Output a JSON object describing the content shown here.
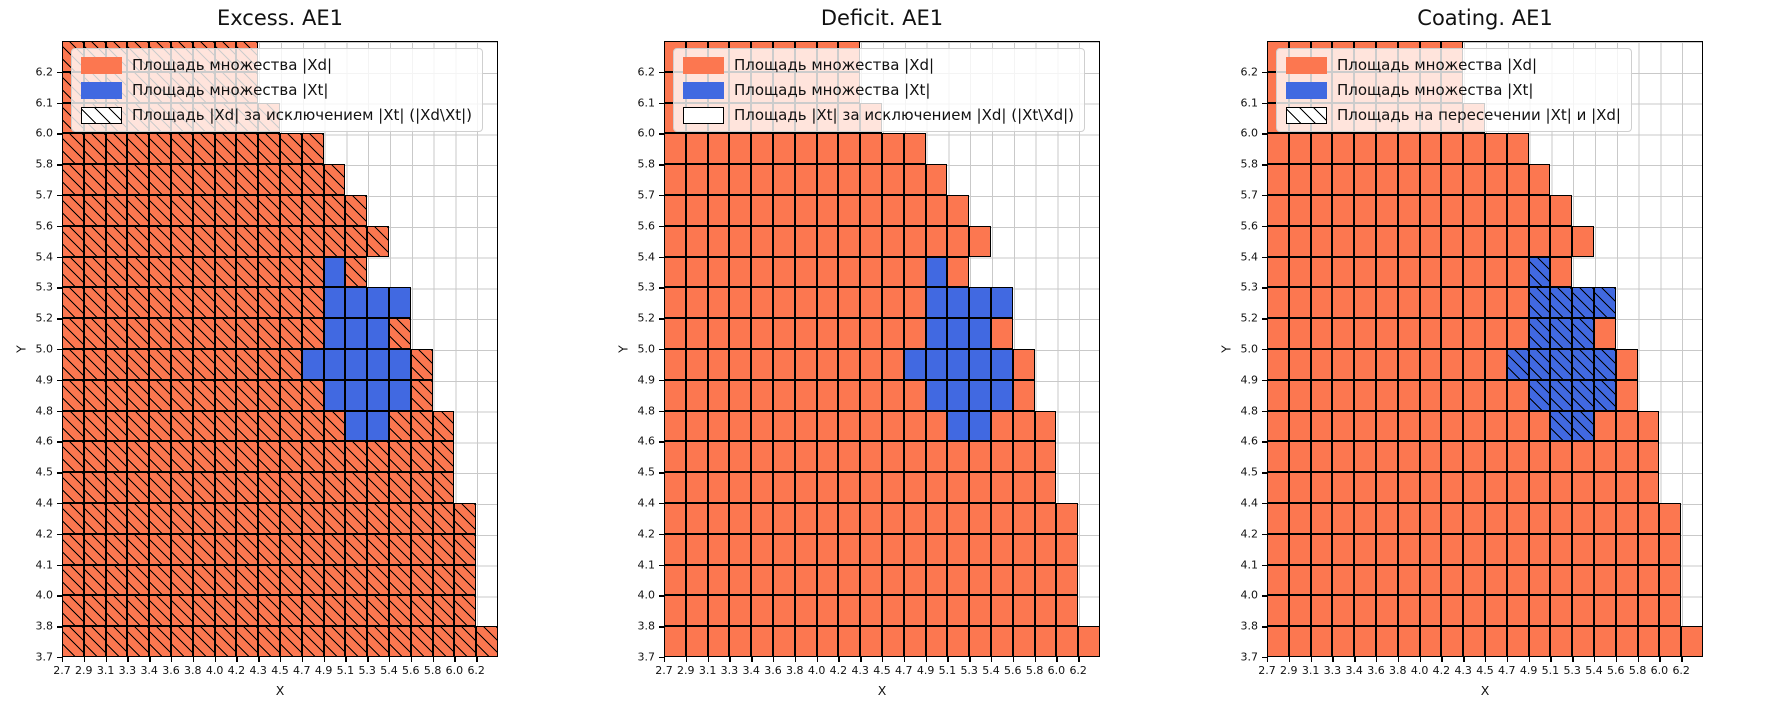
{
  "chart_data": [
    {
      "type": "heatmap",
      "title": "Excess. AE1",
      "xlabel": "X",
      "ylabel": "Y",
      "x_ticks": [
        "2.7",
        "2.9",
        "3.1",
        "3.3",
        "3.4",
        "3.6",
        "3.8",
        "4.0",
        "4.2",
        "4.3",
        "4.5",
        "4.7",
        "4.9",
        "5.1",
        "5.3",
        "5.4",
        "5.6",
        "5.8",
        "6.0",
        "6.2"
      ],
      "y_ticks": [
        "3.7",
        "3.8",
        "4.0",
        "4.1",
        "4.2",
        "4.4",
        "4.5",
        "4.6",
        "4.8",
        "4.9",
        "5.0",
        "5.2",
        "5.3",
        "5.4",
        "5.6",
        "5.7",
        "5.8",
        "6.0",
        "6.1",
        "6.2"
      ],
      "grid": "on",
      "legend_position": "upper-left",
      "hatch_on": "xd",
      "legend": [
        {
          "label": "Площадь множества |Xd|",
          "swatch": "xd"
        },
        {
          "label": "Площадь множества  |Xt|",
          "swatch": "xt"
        },
        {
          "label": "Площадь |Xd| за исключением |Xt| (|Xd\\Xt|)",
          "swatch": "hatch"
        }
      ]
    },
    {
      "type": "heatmap",
      "title": "Deficit. AE1",
      "xlabel": "X",
      "ylabel": "Y",
      "x_ticks": [
        "2.7",
        "2.9",
        "3.1",
        "3.3",
        "3.4",
        "3.6",
        "3.8",
        "4.0",
        "4.2",
        "4.3",
        "4.5",
        "4.7",
        "4.9",
        "5.1",
        "5.3",
        "5.4",
        "5.6",
        "5.8",
        "6.0",
        "6.2"
      ],
      "y_ticks": [
        "3.7",
        "3.8",
        "4.0",
        "4.1",
        "4.2",
        "4.4",
        "4.5",
        "4.6",
        "4.8",
        "4.9",
        "5.0",
        "5.2",
        "5.3",
        "5.4",
        "5.6",
        "5.7",
        "5.8",
        "6.0",
        "6.1",
        "6.2"
      ],
      "grid": "on",
      "legend_position": "upper-left",
      "hatch_on": "none",
      "legend": [
        {
          "label": "Площадь множества |Xd|",
          "swatch": "xd"
        },
        {
          "label": "Площадь множества  |Xt|",
          "swatch": "xt"
        },
        {
          "label": "Площадь |Xt| за исключением |Xd| (|Xt\\Xd|)",
          "swatch": "empty"
        }
      ]
    },
    {
      "type": "heatmap",
      "title": "Coating. AE1",
      "xlabel": "X",
      "ylabel": "Y",
      "x_ticks": [
        "2.7",
        "2.9",
        "3.1",
        "3.3",
        "3.4",
        "3.6",
        "3.8",
        "4.0",
        "4.2",
        "4.3",
        "4.5",
        "4.7",
        "4.9",
        "5.1",
        "5.3",
        "5.4",
        "5.6",
        "5.8",
        "6.0",
        "6.2"
      ],
      "y_ticks": [
        "3.7",
        "3.8",
        "4.0",
        "4.1",
        "4.2",
        "4.4",
        "4.5",
        "4.6",
        "4.8",
        "4.9",
        "5.0",
        "5.2",
        "5.3",
        "5.4",
        "5.6",
        "5.7",
        "5.8",
        "6.0",
        "6.1",
        "6.2"
      ],
      "grid": "on",
      "legend_position": "upper-left",
      "hatch_on": "xt",
      "legend": [
        {
          "label": "Площадь множества |Xd|",
          "swatch": "xd"
        },
        {
          "label": "Площадь множества  |Xt|",
          "swatch": "xt"
        },
        {
          "label": "Площадь на пересечении |Xt| и |Xd|",
          "swatch": "hatch"
        }
      ]
    }
  ],
  "set_data": {
    "note": "20x20 cell grid shared by all three charts; rows indexed bottom-to-top matching y_ticks, cols left-to-right matching x_ticks; xd region fills cols 0..xd_last_col_per_row[row]; xt_spans are [row, first_col, last_col] drawn over xd",
    "xd_last_col_per_row": [
      19,
      18,
      18,
      18,
      18,
      17,
      17,
      17,
      16,
      16,
      15,
      15,
      13,
      14,
      13,
      12,
      11,
      9,
      8,
      8
    ],
    "xt_spans": [
      [
        7,
        13,
        14
      ],
      [
        8,
        12,
        15
      ],
      [
        9,
        11,
        15
      ],
      [
        10,
        12,
        14
      ],
      [
        11,
        12,
        15
      ],
      [
        12,
        12,
        12
      ]
    ]
  },
  "colors": {
    "xd_fill": "#FC7750",
    "xt_fill": "#4169E1",
    "cell_edge": "#000000",
    "grid_line": "#C9C9C9",
    "legend_bg": "rgba(255,255,255,0.8)"
  }
}
